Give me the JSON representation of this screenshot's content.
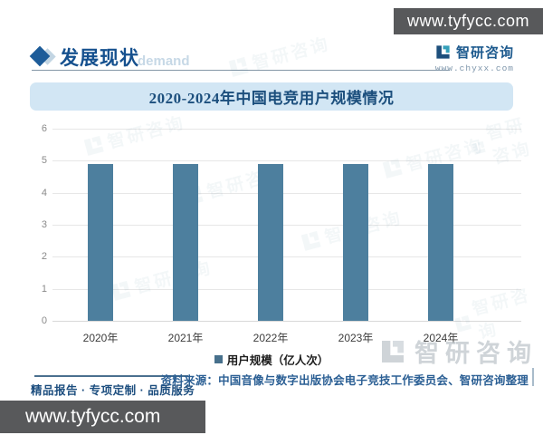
{
  "top_bar": {
    "url": "www.tyfycc.com"
  },
  "header": {
    "section_title": "发展现状",
    "faint_text": "demand",
    "brand": {
      "name": "智研咨询",
      "url": "www.chyxx.com"
    }
  },
  "chart_data": {
    "type": "bar",
    "title": "2020-2024年中国电竞用户规模情况",
    "categories": [
      "2020年",
      "2021年",
      "2022年",
      "2023年",
      "2024年"
    ],
    "values": [
      4.9,
      4.9,
      4.9,
      4.9,
      4.9
    ],
    "series_name": "用户规模（亿人次）",
    "xlabel": "",
    "ylabel": "",
    "ylim": [
      0,
      6
    ],
    "yticks": [
      0,
      1,
      2,
      3,
      4,
      5,
      6
    ],
    "grid": true,
    "legend_position": "bottom",
    "bar_color": "#4d7f9e"
  },
  "legend": {
    "label": "用户规模（亿人次）"
  },
  "footer": {
    "tagline": "精品报告 · 专项定制 · 品质服务",
    "source": "资料来源：中国音像与数字出版协会电子竞技工作委员会、智研咨询整理",
    "url": "www.tyfycc.com"
  },
  "watermark": {
    "brand": "智研咨询"
  },
  "colors": {
    "bar": "#4d7f9e",
    "accent_blue": "#15508e",
    "title_band_bg": "#d2e6f4",
    "dark_bar_bg": "#58595b",
    "legend_marker": "#47708c"
  }
}
